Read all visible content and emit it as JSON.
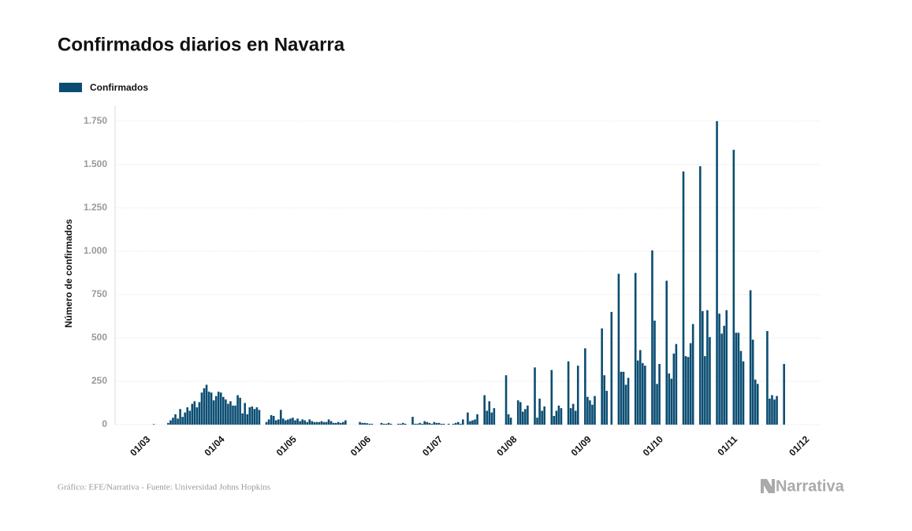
{
  "chart_data": {
    "type": "bar",
    "title": "Confirmados diarios en Navarra",
    "y_label": "Número de confirmados",
    "source": "Gráfico: EFE/Narrativa - Fuente: Universidad Johns Hopkins",
    "logo": "Narrativa",
    "grid": true,
    "legend_position": "top-left",
    "ylim": [
      0,
      1840
    ],
    "yticks": [
      0,
      250,
      500,
      750,
      {
        "value": 1000,
        "label": "1.000"
      },
      {
        "value": 1250,
        "label": "1.250"
      },
      {
        "value": 1500,
        "label": "1.500"
      },
      {
        "value": 1750,
        "label": "1.750"
      }
    ],
    "categories": [
      "01/03",
      null,
      null,
      null,
      null,
      null,
      null,
      null,
      null,
      null,
      null,
      null,
      null,
      null,
      null,
      null,
      null,
      null,
      null,
      null,
      null,
      null,
      null,
      null,
      null,
      null,
      null,
      null,
      null,
      null,
      null,
      "01/04",
      null,
      null,
      null,
      null,
      null,
      null,
      null,
      null,
      null,
      null,
      null,
      null,
      null,
      null,
      null,
      null,
      null,
      null,
      null,
      null,
      null,
      null,
      null,
      null,
      null,
      null,
      null,
      null,
      null,
      "01/05",
      null,
      null,
      null,
      null,
      null,
      null,
      null,
      null,
      null,
      null,
      null,
      null,
      null,
      null,
      null,
      null,
      null,
      null,
      null,
      null,
      null,
      null,
      null,
      null,
      null,
      null,
      null,
      null,
      null,
      null,
      "01/06",
      null,
      null,
      null,
      null,
      null,
      null,
      null,
      null,
      null,
      null,
      null,
      null,
      null,
      null,
      null,
      null,
      null,
      null,
      null,
      null,
      null,
      null,
      null,
      null,
      null,
      null,
      null,
      null,
      null,
      "01/07",
      null,
      null,
      null,
      null,
      null,
      null,
      null,
      null,
      null,
      null,
      null,
      null,
      null,
      null,
      null,
      null,
      null,
      null,
      null,
      null,
      null,
      null,
      null,
      null,
      null,
      null,
      null,
      null,
      null,
      null,
      "01/08",
      null,
      null,
      null,
      null,
      null,
      null,
      null,
      null,
      null,
      null,
      null,
      null,
      null,
      null,
      null,
      null,
      null,
      null,
      null,
      null,
      null,
      null,
      null,
      null,
      null,
      null,
      null,
      null,
      null,
      null,
      "01/09",
      null,
      null,
      null,
      null,
      null,
      null,
      null,
      null,
      null,
      null,
      null,
      null,
      null,
      null,
      null,
      null,
      null,
      null,
      null,
      null,
      null,
      null,
      null,
      null,
      null,
      null,
      null,
      null,
      null,
      "01/10",
      null,
      null,
      null,
      null,
      null,
      null,
      null,
      null,
      null,
      null,
      null,
      null,
      null,
      null,
      null,
      null,
      null,
      null,
      null,
      null,
      null,
      null,
      null,
      null,
      null,
      null,
      null,
      null,
      null,
      null,
      "01/11",
      null,
      null,
      null,
      null,
      null,
      null,
      null,
      null,
      null,
      null,
      null,
      null,
      null,
      null,
      null,
      null,
      null,
      null,
      null,
      null,
      null,
      null,
      null,
      null,
      null,
      null,
      null,
      null,
      null,
      "01/12"
    ],
    "series": [
      {
        "name": "Confirmados",
        "color": "#0b4d72",
        "values": [
          0,
          0,
          0,
          0,
          3,
          0,
          0,
          0,
          0,
          0,
          10,
          25,
          40,
          60,
          35,
          90,
          45,
          70,
          100,
          80,
          120,
          135,
          100,
          130,
          185,
          210,
          230,
          190,
          185,
          140,
          165,
          190,
          185,
          160,
          145,
          120,
          135,
          110,
          110,
          170,
          155,
          65,
          125,
          60,
          100,
          105,
          90,
          100,
          85,
          0,
          0,
          15,
          30,
          55,
          50,
          25,
          30,
          85,
          35,
          25,
          30,
          35,
          40,
          25,
          35,
          20,
          30,
          25,
          15,
          30,
          20,
          15,
          15,
          15,
          20,
          15,
          15,
          30,
          20,
          10,
          10,
          15,
          10,
          15,
          25,
          0,
          0,
          0,
          0,
          0,
          15,
          10,
          10,
          8,
          5,
          5,
          0,
          0,
          0,
          10,
          5,
          5,
          10,
          5,
          0,
          0,
          5,
          5,
          10,
          5,
          0,
          0,
          45,
          5,
          5,
          10,
          5,
          20,
          15,
          10,
          5,
          15,
          10,
          10,
          5,
          5,
          0,
          5,
          0,
          5,
          10,
          15,
          5,
          30,
          0,
          70,
          20,
          25,
          30,
          60,
          0,
          0,
          170,
          80,
          135,
          70,
          95,
          0,
          0,
          0,
          0,
          285,
          60,
          40,
          0,
          0,
          140,
          130,
          75,
          90,
          110,
          0,
          0,
          330,
          40,
          150,
          80,
          105,
          0,
          0,
          315,
          50,
          80,
          110,
          95,
          0,
          0,
          365,
          95,
          120,
          80,
          340,
          0,
          0,
          440,
          160,
          140,
          115,
          165,
          0,
          0,
          555,
          285,
          195,
          0,
          650,
          0,
          0,
          870,
          305,
          305,
          230,
          270,
          0,
          0,
          875,
          370,
          430,
          355,
          340,
          0,
          0,
          1005,
          600,
          235,
          350,
          0,
          0,
          830,
          295,
          265,
          410,
          465,
          0,
          0,
          1460,
          395,
          390,
          470,
          580,
          0,
          0,
          1490,
          655,
          395,
          660,
          505,
          0,
          0,
          1750,
          640,
          525,
          570,
          660,
          0,
          0,
          1585,
          530,
          530,
          425,
          365,
          0,
          0,
          775,
          490,
          260,
          235,
          0,
          0,
          0,
          540,
          150,
          170,
          145,
          165,
          0,
          0,
          350,
          0,
          0,
          0,
          0,
          0,
          0,
          0,
          null
        ]
      }
    ]
  }
}
